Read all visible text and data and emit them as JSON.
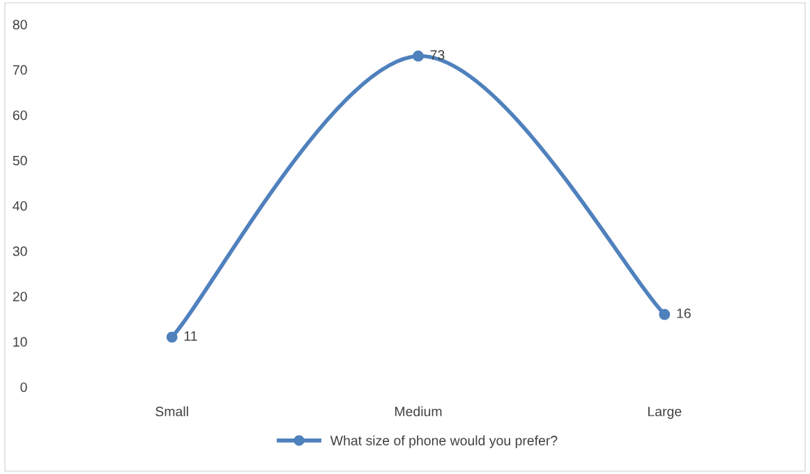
{
  "chart_data": {
    "type": "line",
    "categories": [
      "Small",
      "Medium",
      "Large"
    ],
    "series": [
      {
        "name": "What size of phone would you prefer?",
        "color": "#4f81bd",
        "values": [
          11,
          73,
          16
        ]
      }
    ],
    "ylim": [
      0,
      80
    ],
    "yticks": [
      0,
      10,
      20,
      30,
      40,
      50,
      60,
      70,
      80
    ],
    "grid": false,
    "legend": "bottom",
    "marker": "circle",
    "line_style": "solid",
    "data_labels": true
  }
}
